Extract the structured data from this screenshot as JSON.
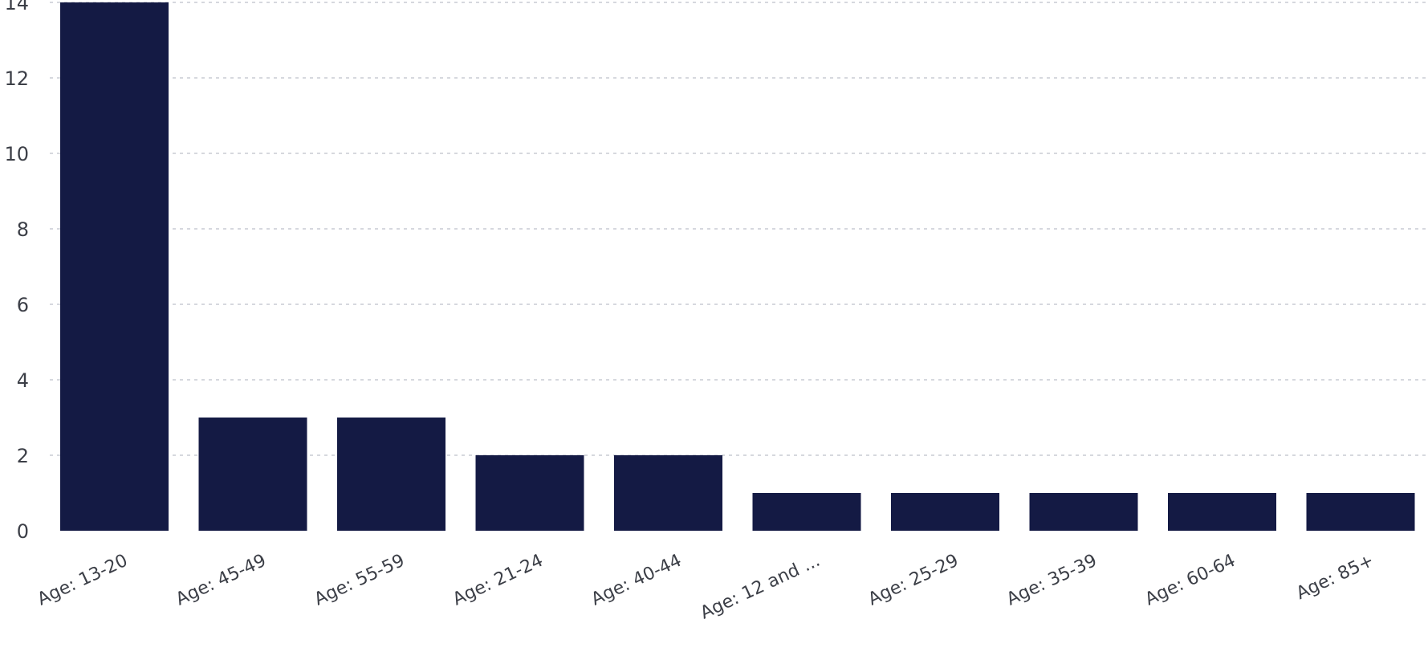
{
  "chart_data": {
    "type": "bar",
    "title": "",
    "xlabel": "",
    "ylabel": "",
    "categories": [
      "Age: 13-20",
      "Age: 45-49",
      "Age: 55-59",
      "Age: 21-24",
      "Age: 40-44",
      "Age: 12 and ...",
      "Age: 25-29",
      "Age: 35-39",
      "Age: 60-64",
      "Age: 85+"
    ],
    "values": [
      14,
      3,
      3,
      2,
      2,
      1,
      1,
      1,
      1,
      1
    ],
    "ylim": [
      0,
      14
    ],
    "yticks": [
      0,
      2,
      4,
      6,
      8,
      10,
      12,
      14
    ],
    "grid": true,
    "legend": "none",
    "bar_color": "#141a44"
  }
}
